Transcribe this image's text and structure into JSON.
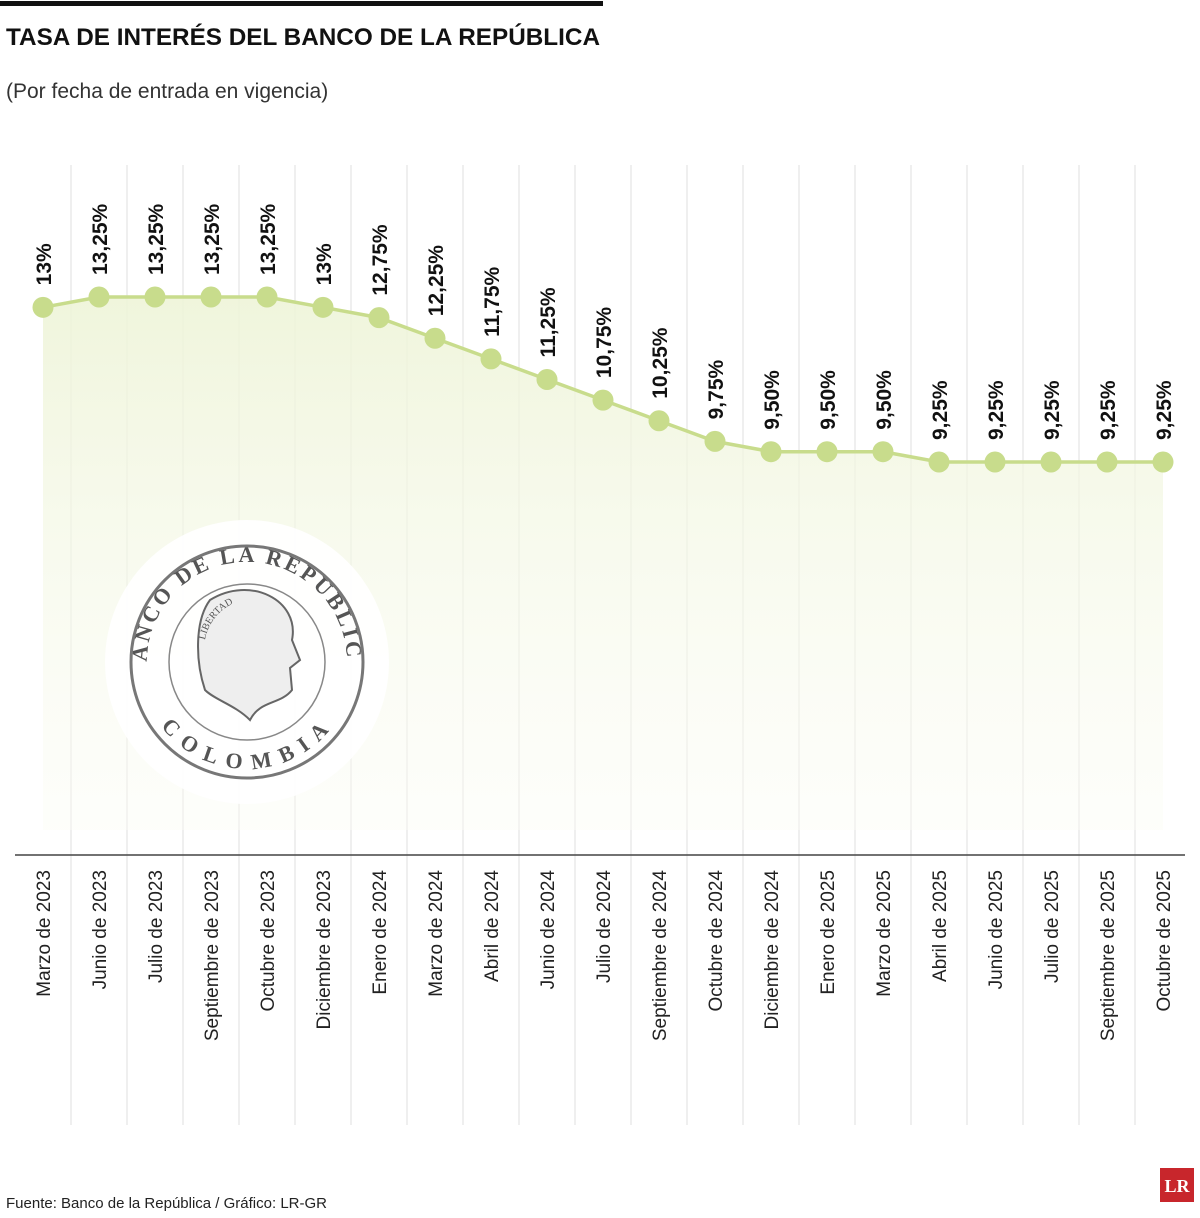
{
  "chart_data": {
    "type": "line",
    "title": "TASA DE INTERÉS DEL BANCO DE LA REPÚBLICA",
    "subtitle": "(Por fecha de entrada en vigencia)",
    "source": "Fuente: Banco de la República / Gráfico: LR-GR",
    "brand": "LR",
    "logo": {
      "top": "BANCO DE LA REPUBLICA",
      "bottom": "COLOMBIA",
      "ribbon": "LIBERTAD"
    },
    "color": "#c8dc8c",
    "categories": [
      "Marzo de 2023",
      "Junio de 2023",
      "Julio de 2023",
      "Septiembre de 2023",
      "Octubre de 2023",
      "Diciembre de 2023",
      "Enero de 2024",
      "Marzo de 2024",
      "Abril de 2024",
      "Junio de 2024",
      "Julio de 2024",
      "Septiembre de 2024",
      "Octubre de 2024",
      "Diciembre de 2024",
      "Enero de 2025",
      "Marzo de 2025",
      "Abril de 2025",
      "Junio de 2025",
      "Julio de 2025",
      "Septiembre de 2025",
      "Octubre de 2025"
    ],
    "values": [
      13,
      13.25,
      13.25,
      13.25,
      13.25,
      13,
      12.75,
      12.25,
      11.75,
      11.25,
      10.75,
      10.25,
      9.75,
      9.5,
      9.5,
      9.5,
      9.25,
      9.25,
      9.25,
      9.25,
      9.25
    ],
    "value_labels": [
      "13%",
      "13,25%",
      "13,25%",
      "13,25%",
      "13,25%",
      "13%",
      "12,75%",
      "12,25%",
      "11,75%",
      "11,25%",
      "10,75%",
      "10,25%",
      "9,75%",
      "9,50%",
      "9,50%",
      "9,50%",
      "9,25%",
      "9,25%",
      "9,25%",
      "9,25%",
      "9,25%"
    ]
  }
}
